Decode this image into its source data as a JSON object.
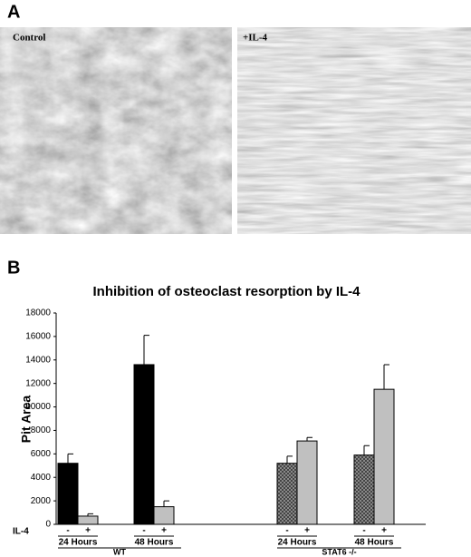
{
  "panel_a": {
    "label": "A",
    "images": [
      {
        "label": "Control"
      },
      {
        "label": "+IL-4"
      }
    ]
  },
  "chart_data": {
    "type": "bar",
    "panel_label": "B",
    "title": "Inhibition of osteoclast resorption by IL-4",
    "y_label": "Pit Area",
    "treatment_label": "IL-4",
    "ylim": [
      0,
      18000
    ],
    "yticks": [
      0,
      2000,
      4000,
      6000,
      8000,
      10000,
      12000,
      14000,
      16000,
      18000
    ],
    "groups": [
      {
        "label": "WT",
        "subgroups": [
          {
            "label": "24 Hours",
            "bars": [
              {
                "treatment": "-",
                "value": 5200,
                "error": 800,
                "color": "#000000",
                "pattern": "solid"
              },
              {
                "treatment": "+",
                "value": 700,
                "error": 200,
                "color": "#c0c0c0",
                "pattern": "solid"
              }
            ]
          },
          {
            "label": "48 Hours",
            "bars": [
              {
                "treatment": "-",
                "value": 13600,
                "error": 2500,
                "color": "#000000",
                "pattern": "solid"
              },
              {
                "treatment": "+",
                "value": 1500,
                "error": 500,
                "color": "#c0c0c0",
                "pattern": "solid"
              }
            ]
          }
        ]
      },
      {
        "label": "STAT6 -/-",
        "subgroups": [
          {
            "label": "24 Hours",
            "bars": [
              {
                "treatment": "-",
                "value": 5200,
                "error": 600,
                "color": "#808080",
                "pattern": "crosshatch"
              },
              {
                "treatment": "+",
                "value": 7100,
                "error": 300,
                "color": "#c0c0c0",
                "pattern": "solid"
              }
            ]
          },
          {
            "label": "48 Hours",
            "bars": [
              {
                "treatment": "-",
                "value": 5900,
                "error": 800,
                "color": "#808080",
                "pattern": "crosshatch"
              },
              {
                "treatment": "+",
                "value": 11500,
                "error": 2100,
                "color": "#c0c0c0",
                "pattern": "solid"
              }
            ]
          }
        ]
      }
    ]
  }
}
